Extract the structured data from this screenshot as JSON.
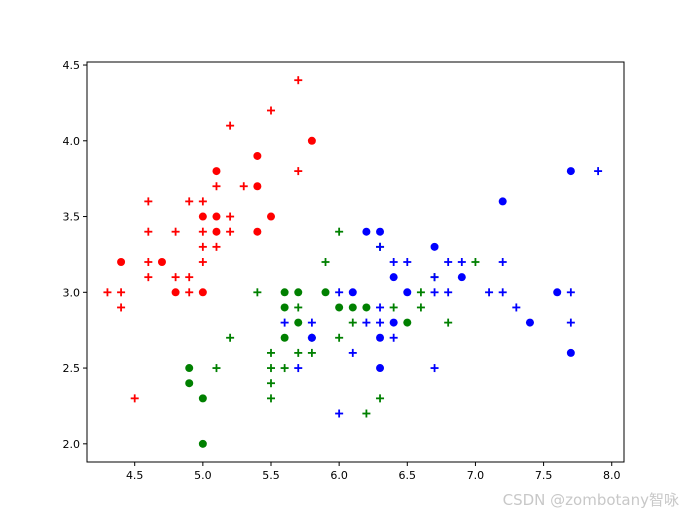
{
  "watermark": "CSDN @zombotany智咏",
  "chart_data": {
    "type": "scatter",
    "title": "",
    "xlabel": "",
    "ylabel": "",
    "xlim": [
      4.15,
      8.09
    ],
    "ylim": [
      1.88,
      4.52
    ],
    "grid": false,
    "x_ticks": [
      "4.5",
      "5.0",
      "5.5",
      "6.0",
      "6.5",
      "7.0",
      "7.5",
      "8.0"
    ],
    "y_ticks": [
      "2.0",
      "2.5",
      "3.0",
      "3.5",
      "4.0",
      "4.5"
    ],
    "series": [
      {
        "color": "#ff0000",
        "marker": "circle",
        "points": [
          [
            4.4,
            3.2
          ],
          [
            4.7,
            3.2
          ],
          [
            4.8,
            3.0
          ],
          [
            5.0,
            3.0
          ],
          [
            5.0,
            3.5
          ],
          [
            5.1,
            3.5
          ],
          [
            5.1,
            3.4
          ],
          [
            5.1,
            3.8
          ],
          [
            5.4,
            3.9
          ],
          [
            5.4,
            3.7
          ],
          [
            5.4,
            3.4
          ],
          [
            5.5,
            3.5
          ],
          [
            5.8,
            4.0
          ]
        ]
      },
      {
        "color": "#ff0000",
        "marker": "plus",
        "points": [
          [
            4.3,
            3.0
          ],
          [
            4.4,
            3.0
          ],
          [
            4.4,
            2.9
          ],
          [
            4.5,
            2.3
          ],
          [
            4.6,
            3.6
          ],
          [
            4.6,
            3.4
          ],
          [
            4.6,
            3.2
          ],
          [
            4.6,
            3.1
          ],
          [
            4.8,
            3.4
          ],
          [
            4.8,
            3.1
          ],
          [
            4.9,
            3.6
          ],
          [
            4.9,
            3.1
          ],
          [
            4.9,
            3.0
          ],
          [
            5.0,
            3.6
          ],
          [
            5.0,
            3.4
          ],
          [
            5.0,
            3.3
          ],
          [
            5.0,
            3.2
          ],
          [
            5.1,
            3.7
          ],
          [
            5.1,
            3.3
          ],
          [
            5.2,
            4.1
          ],
          [
            5.2,
            3.5
          ],
          [
            5.2,
            3.4
          ],
          [
            5.3,
            3.7
          ],
          [
            5.5,
            4.2
          ],
          [
            5.7,
            4.4
          ],
          [
            5.7,
            3.8
          ]
        ]
      },
      {
        "color": "#008000",
        "marker": "circle",
        "points": [
          [
            4.9,
            2.5
          ],
          [
            4.9,
            2.4
          ],
          [
            5.0,
            2.3
          ],
          [
            5.0,
            2.0
          ],
          [
            5.6,
            3.0
          ],
          [
            5.6,
            2.9
          ],
          [
            5.6,
            2.7
          ],
          [
            5.7,
            3.0
          ],
          [
            5.7,
            2.8
          ],
          [
            5.9,
            3.0
          ],
          [
            6.0,
            2.9
          ],
          [
            6.1,
            2.9
          ],
          [
            6.2,
            2.9
          ],
          [
            6.5,
            2.8
          ]
        ]
      },
      {
        "color": "#008000",
        "marker": "plus",
        "points": [
          [
            5.1,
            2.5
          ],
          [
            5.2,
            2.7
          ],
          [
            5.4,
            3.0
          ],
          [
            5.5,
            2.6
          ],
          [
            5.5,
            2.5
          ],
          [
            5.5,
            2.4
          ],
          [
            5.5,
            2.3
          ],
          [
            5.6,
            2.5
          ],
          [
            5.7,
            2.9
          ],
          [
            5.7,
            2.6
          ],
          [
            5.8,
            2.7
          ],
          [
            5.8,
            2.6
          ],
          [
            5.9,
            3.2
          ],
          [
            6.0,
            3.4
          ],
          [
            6.0,
            2.7
          ],
          [
            6.1,
            2.8
          ],
          [
            6.2,
            2.2
          ],
          [
            6.3,
            3.3
          ],
          [
            6.3,
            2.3
          ],
          [
            6.4,
            2.9
          ],
          [
            6.6,
            3.0
          ],
          [
            6.6,
            2.9
          ],
          [
            6.7,
            3.1
          ],
          [
            6.8,
            2.8
          ],
          [
            7.0,
            3.2
          ]
        ]
      },
      {
        "color": "#0000ff",
        "marker": "circle",
        "points": [
          [
            5.8,
            2.7
          ],
          [
            6.1,
            3.0
          ],
          [
            6.2,
            3.4
          ],
          [
            6.3,
            3.4
          ],
          [
            6.3,
            2.7
          ],
          [
            6.3,
            2.5
          ],
          [
            6.4,
            3.1
          ],
          [
            6.4,
            2.8
          ],
          [
            6.5,
            3.0
          ],
          [
            6.7,
            3.3
          ],
          [
            6.9,
            3.1
          ],
          [
            7.2,
            3.6
          ],
          [
            7.4,
            2.8
          ],
          [
            7.6,
            3.0
          ],
          [
            7.7,
            3.8
          ],
          [
            7.7,
            2.6
          ]
        ]
      },
      {
        "color": "#0000ff",
        "marker": "plus",
        "points": [
          [
            5.6,
            2.8
          ],
          [
            5.7,
            2.5
          ],
          [
            5.8,
            2.8
          ],
          [
            6.0,
            3.0
          ],
          [
            6.0,
            2.2
          ],
          [
            6.1,
            2.6
          ],
          [
            6.2,
            2.8
          ],
          [
            6.3,
            3.3
          ],
          [
            6.3,
            2.9
          ],
          [
            6.3,
            2.8
          ],
          [
            6.4,
            3.2
          ],
          [
            6.4,
            2.7
          ],
          [
            6.5,
            3.2
          ],
          [
            6.7,
            3.1
          ],
          [
            6.7,
            3.0
          ],
          [
            6.7,
            2.5
          ],
          [
            6.8,
            3.0
          ],
          [
            6.8,
            3.2
          ],
          [
            6.9,
            3.2
          ],
          [
            7.1,
            3.0
          ],
          [
            7.2,
            3.2
          ],
          [
            7.2,
            3.0
          ],
          [
            7.3,
            2.9
          ],
          [
            7.7,
            3.0
          ],
          [
            7.7,
            2.8
          ],
          [
            7.9,
            3.8
          ]
        ]
      }
    ]
  }
}
